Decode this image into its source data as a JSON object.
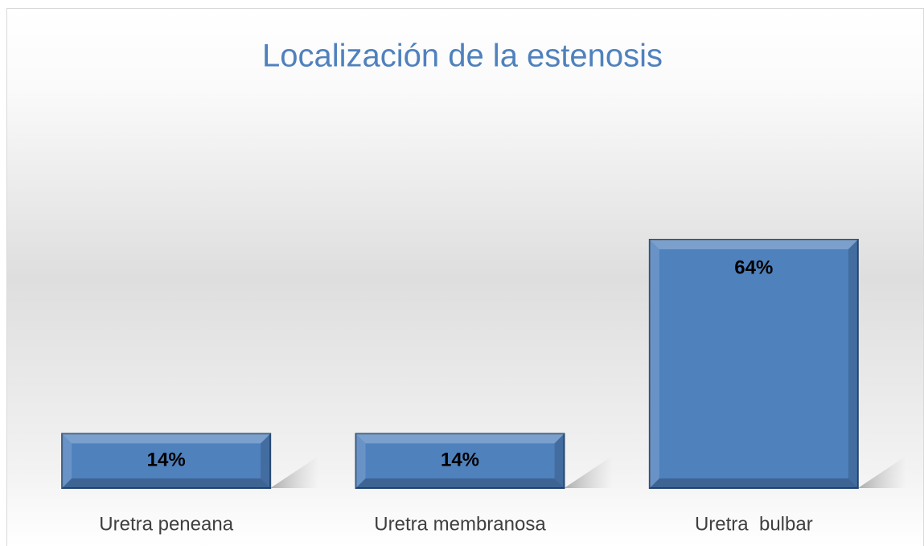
{
  "chart_data": {
    "type": "bar",
    "title": "Localización de la estenosis",
    "categories": [
      "Uretra peneana",
      "Uretra membranosa",
      "Uretra  bulbar"
    ],
    "values": [
      14,
      14,
      64
    ],
    "value_labels": [
      "14%",
      "14%",
      "64%"
    ],
    "color": "#4f81bd"
  }
}
